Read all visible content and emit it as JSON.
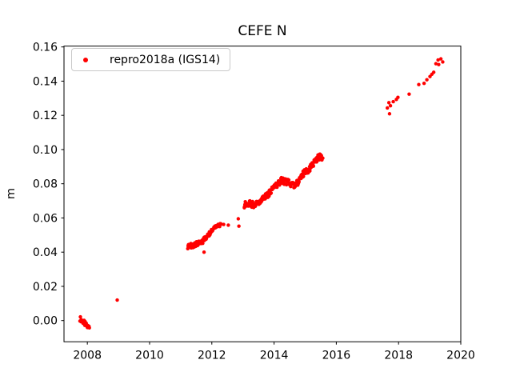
{
  "chart_data": {
    "type": "scatter",
    "title": "CEFE N",
    "ylabel": "m",
    "xlabel": "",
    "xlim": [
      2007.25,
      2020.0
    ],
    "ylim": [
      -0.0124,
      0.1605
    ],
    "xticks": [
      2008,
      2010,
      2012,
      2014,
      2016,
      2018,
      2020
    ],
    "xticklabels": [
      "2008",
      "2010",
      "2012",
      "2014",
      "2016",
      "2018",
      "2020"
    ],
    "yticks": [
      0.0,
      0.02,
      0.04,
      0.06,
      0.08,
      0.1,
      0.12,
      0.14,
      0.16
    ],
    "yticklabels": [
      "0.00",
      "0.02",
      "0.04",
      "0.06",
      "0.08",
      "0.10",
      "0.12",
      "0.14",
      "0.16"
    ],
    "grid": false,
    "legend_position": "upper-left",
    "series": [
      {
        "name": "repro2018a (IGS14)",
        "color": "#ff0000",
        "marker": "dot",
        "marker_size_px": 4.4,
        "segments": [
          {
            "kind": "cluster",
            "n": 24,
            "spread": 0.0015,
            "waypoints": [
              [
                2007.77,
                0.0012
              ],
              [
                2007.83,
                -0.0002
              ],
              [
                2007.88,
                -0.001
              ],
              [
                2007.94,
                -0.0022
              ],
              [
                2008.0,
                -0.0035
              ],
              [
                2008.06,
                -0.004
              ]
            ]
          },
          {
            "kind": "points",
            "points": [
              [
                2008.96,
                0.012
              ]
            ]
          },
          {
            "kind": "cluster",
            "n": 85,
            "spread": 0.0014,
            "waypoints": [
              [
                2011.22,
                0.0432
              ],
              [
                2011.32,
                0.0438
              ],
              [
                2011.42,
                0.044
              ],
              [
                2011.5,
                0.0448
              ],
              [
                2011.6,
                0.0455
              ],
              [
                2011.7,
                0.0462
              ],
              [
                2011.8,
                0.0482
              ],
              [
                2011.9,
                0.0505
              ],
              [
                2012.0,
                0.0528
              ],
              [
                2012.08,
                0.0545
              ],
              [
                2012.16,
                0.0545
              ],
              [
                2012.24,
                0.0552
              ],
              [
                2012.3,
                0.0556
              ]
            ]
          },
          {
            "kind": "points",
            "points": [
              [
                2011.75,
                0.04
              ],
              [
                2012.38,
                0.0562
              ],
              [
                2012.53,
                0.0558
              ],
              [
                2012.85,
                0.0595
              ],
              [
                2012.87,
                0.0552
              ]
            ]
          },
          {
            "kind": "cluster",
            "n": 210,
            "spread": 0.0018,
            "waypoints": [
              [
                2013.04,
                0.0672
              ],
              [
                2013.14,
                0.069
              ],
              [
                2013.24,
                0.0682
              ],
              [
                2013.34,
                0.0678
              ],
              [
                2013.44,
                0.069
              ],
              [
                2013.54,
                0.07
              ],
              [
                2013.64,
                0.071
              ],
              [
                2013.74,
                0.0728
              ],
              [
                2013.84,
                0.074
              ],
              [
                2013.94,
                0.0765
              ],
              [
                2014.02,
                0.0788
              ],
              [
                2014.12,
                0.08
              ],
              [
                2014.25,
                0.0822
              ],
              [
                2014.32,
                0.0812
              ],
              [
                2014.42,
                0.081
              ],
              [
                2014.52,
                0.08
              ],
              [
                2014.62,
                0.079
              ],
              [
                2014.72,
                0.08
              ],
              [
                2014.82,
                0.082
              ],
              [
                2014.9,
                0.0852
              ],
              [
                2015.0,
                0.087
              ],
              [
                2015.1,
                0.0882
              ],
              [
                2015.2,
                0.09
              ],
              [
                2015.3,
                0.0928
              ],
              [
                2015.4,
                0.0952
              ],
              [
                2015.48,
                0.0958
              ],
              [
                2015.56,
                0.095
              ]
            ]
          },
          {
            "kind": "points",
            "points": [
              [
                2017.64,
                0.1243
              ],
              [
                2017.69,
                0.1274
              ],
              [
                2017.71,
                0.1209
              ],
              [
                2017.74,
                0.1256
              ],
              [
                2017.83,
                0.128
              ],
              [
                2017.93,
                0.1293
              ],
              [
                2017.98,
                0.1305
              ],
              [
                2018.34,
                0.1324
              ],
              [
                2018.65,
                0.138
              ],
              [
                2018.82,
                0.1387
              ],
              [
                2018.91,
                0.1408
              ],
              [
                2019.01,
                0.1427
              ],
              [
                2019.07,
                0.144
              ],
              [
                2019.13,
                0.1452
              ],
              [
                2019.2,
                0.1502
              ],
              [
                2019.27,
                0.1524
              ],
              [
                2019.29,
                0.1497
              ],
              [
                2019.36,
                0.153
              ],
              [
                2019.42,
                0.1512
              ]
            ]
          }
        ]
      }
    ]
  }
}
